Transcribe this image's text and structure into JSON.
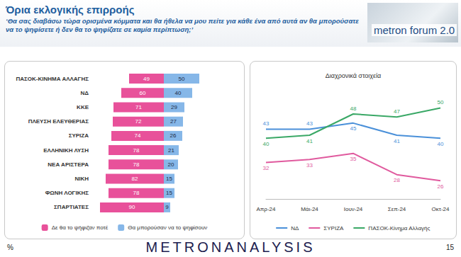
{
  "header": {
    "title": "Όρια εκλογικής επιρροής",
    "subtitle": "‘Θα σας διαβάσω τώρα ορισμένα κόμματα και θα ήθελα να μου πείτε για κάθε ένα από αυτά αν θα μπορούσατε να το ψηφίσετε ή δεν θα το ψηφίζατε σε καμία περίπτωση;’",
    "logo": "metron forum 2.0"
  },
  "chart_data": [
    {
      "type": "bar",
      "orientation": "horizontal",
      "categories": [
        "ΠΑΣΟΚ-ΚΙΝΗΜΑ ΑΛΛΑΓΗΣ",
        "ΝΔ",
        "ΚΚΕ",
        "ΠΛΕΥΣΗ ΕΛΕΥΘΕΡΙΑΣ",
        "ΣΥΡΙΖΑ",
        "ΕΛΛΗΝΙΚΗ ΛΥΣΗ",
        "ΝΕΑ ΑΡΙΣΤΕΡΑ",
        "ΝΙΚΗ",
        "ΦΩΝΗ ΛΟΓΙΚΗΣ",
        "ΣΠΑΡΤΙΑΤΕΣ"
      ],
      "series": [
        {
          "name": "Δε θα το ψήφιζαν ποτέ",
          "color": "#e8519a",
          "values": [
            49,
            60,
            71,
            72,
            74,
            78,
            78,
            82,
            78,
            90
          ]
        },
        {
          "name": "Θα μπορούσαν να το ψηφίσουν",
          "color": "#86b7e8",
          "values": [
            50,
            40,
            29,
            27,
            26,
            21,
            20,
            15,
            15,
            9
          ]
        }
      ],
      "xlim": [
        0,
        100
      ],
      "data_labels": true,
      "tick_labels": false,
      "legend": "bottom",
      "grid": false
    },
    {
      "type": "line",
      "title": "Διαχρονικά στοιχεία",
      "categories": [
        "Απρ-24",
        "Μάι-24",
        "Ιουν-24",
        "Σεπ-24",
        "Οκτ-24"
      ],
      "series": [
        {
          "name": "ΝΔ",
          "color": "#4a90d9",
          "values": [
            43,
            43,
            45,
            41,
            40
          ]
        },
        {
          "name": "ΣΥΡΙΖΑ",
          "color": "#e05a9e",
          "values": [
            32,
            33,
            35,
            28,
            26
          ]
        },
        {
          "name": "ΠΑΣΟΚ-Κίνημα Αλλαγής",
          "color": "#3aa866",
          "values": [
            40,
            41,
            48,
            47,
            50
          ]
        }
      ],
      "ylim": [
        20,
        55
      ],
      "data_labels": true,
      "tick_labels": "x",
      "legend": "bottom",
      "marker": "none",
      "grid": false
    }
  ],
  "footer": {
    "unit": "%",
    "brand": "METRONANALYSIS",
    "page": "15"
  }
}
